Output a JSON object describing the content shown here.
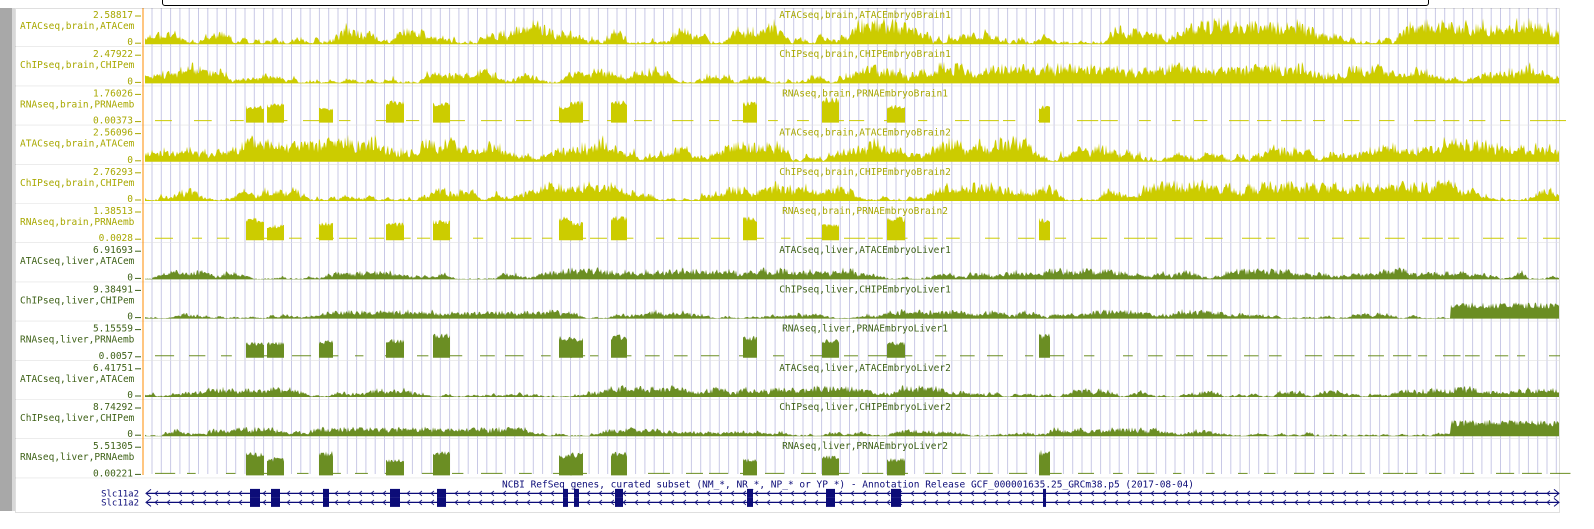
{
  "colors": {
    "brain": "#cccc00",
    "liver": "#6b8e23",
    "gene": "#0c0c78",
    "label_brain": "#a8a800",
    "label_liver": "#3f6218",
    "vline": "#c8c8e6",
    "sidebar": "#a8a8a8",
    "axis": "#ff8c00"
  },
  "tracks": [
    {
      "side_label": "ATACseq,brain,ATACem",
      "title": "ATACseq,brain,ATACEmbryoBrain1",
      "max": "2.58817",
      "min": "0",
      "tissue": "brain",
      "kind": "atac",
      "seed": 11
    },
    {
      "side_label": "ChIPseq,brain,CHIPem",
      "title": "ChIPseq,brain,CHIPEmbryoBrain1",
      "max": "2.47922",
      "min": "0",
      "tissue": "brain",
      "kind": "chip",
      "seed": 23
    },
    {
      "side_label": "RNAseq,brain,PRNAemb",
      "title": "RNAseq,brain,PRNAEmbryoBrain1",
      "max": "1.76026",
      "min": "0.00373",
      "tissue": "brain",
      "kind": "rna",
      "seed": 37
    },
    {
      "side_label": "ATACseq,brain,ATACem",
      "title": "ATACseq,brain,ATACEmbryoBrain2",
      "max": "2.56096",
      "min": "0",
      "tissue": "brain",
      "kind": "atac",
      "seed": 41
    },
    {
      "side_label": "ChIPseq,brain,CHIPem",
      "title": "ChIPseq,brain,CHIPEmbryoBrain2",
      "max": "2.76293",
      "min": "0",
      "tissue": "brain",
      "kind": "chip",
      "seed": 53
    },
    {
      "side_label": "RNAseq,brain,PRNAemb",
      "title": "RNAseq,brain,PRNAEmbryoBrain2",
      "max": "1.38513",
      "min": "0.0028",
      "tissue": "brain",
      "kind": "rna",
      "seed": 67
    },
    {
      "side_label": "ATACseq,liver,ATACem",
      "title": "ATACseq,liver,ATACEmbryoLiver1",
      "max": "6.91693",
      "min": "0",
      "tissue": "liver",
      "kind": "atac",
      "seed": 71
    },
    {
      "side_label": "ChIPseq,liver,CHIPem",
      "title": "ChIPseq,liver,CHIPEmbryoLiver1",
      "max": "9.38491",
      "min": "0",
      "tissue": "liver",
      "kind": "chip",
      "seed": 83
    },
    {
      "side_label": "RNAseq,liver,PRNAemb",
      "title": "RNAseq,liver,PRNAEmbryoLiver1",
      "max": "5.15559",
      "min": "0.0057",
      "tissue": "liver",
      "kind": "rna",
      "seed": 97
    },
    {
      "side_label": "ATACseq,liver,ATACem",
      "title": "ATACseq,liver,ATACEmbryoLiver2",
      "max": "6.41751",
      "min": "0",
      "tissue": "liver",
      "kind": "atac",
      "seed": 101
    },
    {
      "side_label": "ChIPseq,liver,CHIPem",
      "title": "ChIPseq,liver,CHIPEmbryoLiver2",
      "max": "8.74292",
      "min": "0",
      "tissue": "liver",
      "kind": "chip",
      "seed": 113
    },
    {
      "side_label": "RNAseq,liver,PRNAemb",
      "title": "RNAseq,liver,PRNAEmbryoLiver2",
      "max": "5.51305",
      "min": "0.00221",
      "tissue": "liver",
      "kind": "rna",
      "seed": 127
    }
  ],
  "gene_track": {
    "title": "NCBI RefSeq genes, curated subset (NM_*, NR_*, NP_* or YP_*) - Annotation Release GCF_000001635.25_GRCm38.p5 (2017-08-04)",
    "genes": [
      {
        "name": "Slc11a2"
      },
      {
        "name": "Slc11a2"
      }
    ]
  }
}
